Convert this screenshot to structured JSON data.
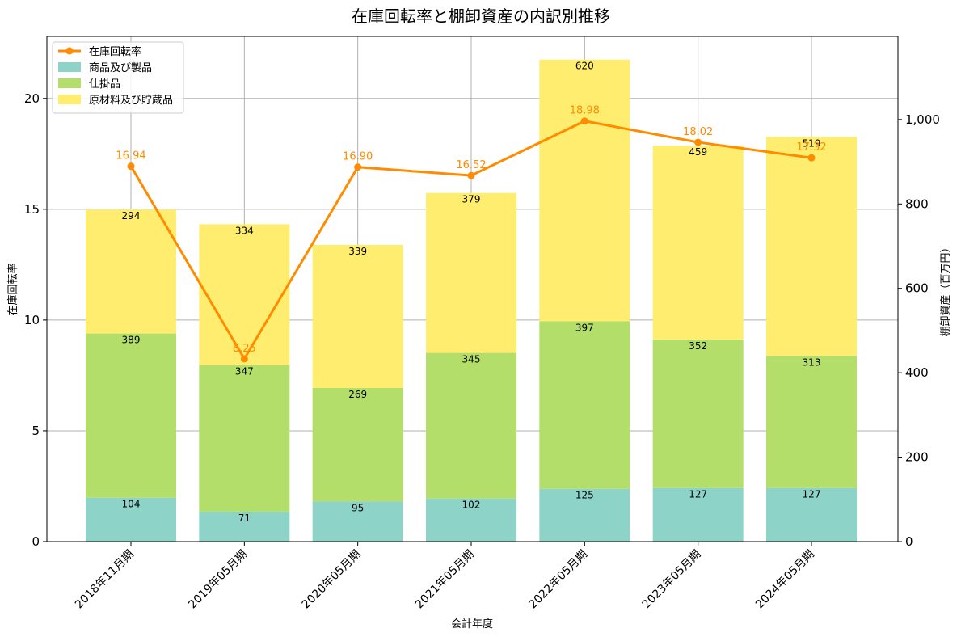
{
  "chart_data": {
    "type": "bar",
    "title": "在庫回転率と棚卸資産の内訳別推移",
    "xlabel": "会計年度",
    "ylabel_left": "在庫回転率",
    "ylabel_right": "棚卸資産（百万円）",
    "categories": [
      "2018年11月期",
      "2019年05月期",
      "2020年05月期",
      "2021年05月期",
      "2022年05月期",
      "2023年05月期",
      "2024年05月期"
    ],
    "stacked_series": [
      {
        "name": "商品及び製品",
        "color": "#8dd3c7",
        "values": [
          104,
          71,
          95,
          102,
          125,
          127,
          127
        ]
      },
      {
        "name": "仕掛品",
        "color": "#b3de69",
        "values": [
          389,
          347,
          269,
          345,
          397,
          352,
          313
        ]
      },
      {
        "name": "原材料及び貯蔵品",
        "color": "#ffed6f",
        "values": [
          294,
          334,
          339,
          379,
          620,
          459,
          519
        ]
      }
    ],
    "line_series": {
      "name": "在庫回転率",
      "color": "#ff8c00",
      "values": [
        16.94,
        8.25,
        16.9,
        16.52,
        18.98,
        18.02,
        17.32
      ],
      "labels": [
        "16.94",
        "8.25",
        "16.90",
        "16.52",
        "18.98",
        "18.02",
        "17.32"
      ]
    },
    "left_axis": {
      "ylim": [
        0,
        22.8
      ],
      "ticks": [
        0,
        5,
        10,
        15,
        20
      ],
      "tick_labels": [
        "0",
        "5",
        "10",
        "15",
        "20"
      ]
    },
    "right_axis": {
      "ylim": [
        0,
        1197
      ],
      "ticks": [
        0,
        200,
        400,
        600,
        800,
        1000
      ],
      "tick_labels": [
        "0",
        "200",
        "400",
        "600",
        "800",
        "1,000"
      ]
    },
    "grid": true,
    "legend_position": "upper-left"
  }
}
